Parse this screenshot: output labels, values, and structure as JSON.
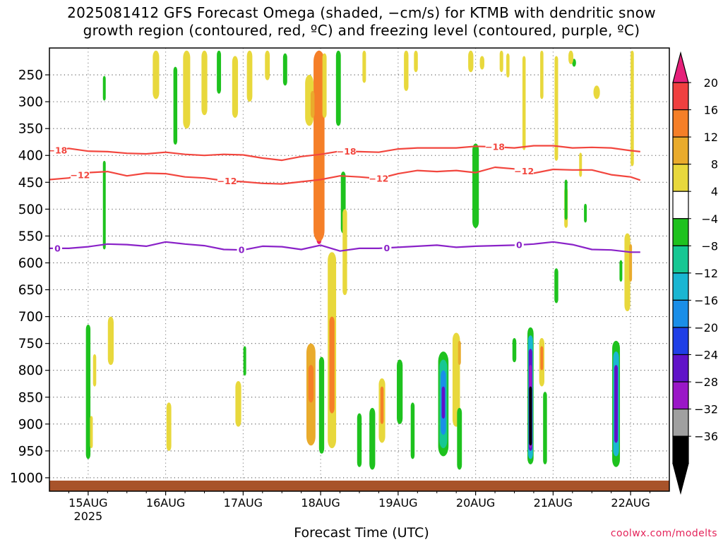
{
  "title": {
    "line1": "2025081412 GFS Forecast Omega (shaded, −cm/s) for KTMB with dendritic snow",
    "line2": "growth region (contoured, red, ºC) and freezing level (contoured, purple, ºC)"
  },
  "credit": "coolwx.com/modelts",
  "chart_data": {
    "type": "heatmap",
    "xlabel": "Forecast Time (UTC)",
    "ylabel": "",
    "x_range_hours": [
      -12,
      180
    ],
    "y_range_hpa": [
      200,
      1025
    ],
    "y_ticks": [
      250,
      300,
      350,
      400,
      450,
      500,
      550,
      600,
      650,
      700,
      750,
      800,
      850,
      900,
      950,
      1000
    ],
    "x_ticks": [
      {
        "hour": 0,
        "label": "15AUG",
        "sub": "2025"
      },
      {
        "hour": 24,
        "label": "16AUG",
        "sub": ""
      },
      {
        "hour": 48,
        "label": "17AUG",
        "sub": ""
      },
      {
        "hour": 72,
        "label": "18AUG",
        "sub": ""
      },
      {
        "hour": 96,
        "label": "19AUG",
        "sub": ""
      },
      {
        "hour": 120,
        "label": "20AUG",
        "sub": ""
      },
      {
        "hour": 144,
        "label": "21AUG",
        "sub": ""
      },
      {
        "hour": 168,
        "label": "22AUG",
        "sub": ""
      }
    ],
    "grid": true,
    "colorbar": {
      "labels": [
        "20",
        "16",
        "12",
        "8",
        "4",
        "-4",
        "-8",
        "-12",
        "-16",
        "-20",
        "-24",
        "-28",
        "-32",
        "-36"
      ],
      "colors": [
        "#ee1f5f",
        "#f04040",
        "#f57f28",
        "#e9ab2c",
        "#e8d83c",
        "#ffffff",
        "#1ec21e",
        "#16c793",
        "#1ab6d2",
        "#1a8ee8",
        "#1f3fe6",
        "#6012c8",
        "#9a17c7",
        "#a0a0a0",
        "#000000"
      ],
      "top_arrow_color": "#e6207a",
      "bottom_arrow_color": "#000000"
    },
    "omega_regions": [
      {
        "t": 71.5,
        "p0": 205,
        "p1": 565,
        "w": 1.6,
        "v": 20
      },
      {
        "t": 71.5,
        "p0": 205,
        "p1": 560,
        "w": 3.4,
        "v": 12
      },
      {
        "t": 73.2,
        "p0": 210,
        "p1": 330,
        "w": 1.3,
        "v": 4
      },
      {
        "t": 68.5,
        "p0": 250,
        "p1": 345,
        "w": 2.6,
        "v": 4
      },
      {
        "t": 69.5,
        "p0": 280,
        "p1": 330,
        "w": 1.2,
        "v": 8
      },
      {
        "t": 40.5,
        "p0": 205,
        "p1": 285,
        "w": 1.3,
        "v": -8
      },
      {
        "t": 5.0,
        "p0": 410,
        "p1": 575,
        "w": 0.6,
        "v": -8
      },
      {
        "t": 5.0,
        "p0": 252,
        "p1": 298,
        "w": 0.6,
        "v": -8
      },
      {
        "t": 27.0,
        "p0": 235,
        "p1": 380,
        "w": 1.2,
        "v": -8
      },
      {
        "t": 21.0,
        "p0": 205,
        "p1": 295,
        "w": 2.0,
        "v": 4
      },
      {
        "t": 30.5,
        "p0": 205,
        "p1": 350,
        "w": 2.2,
        "v": 4
      },
      {
        "t": 36.0,
        "p0": 205,
        "p1": 325,
        "w": 1.8,
        "v": 4
      },
      {
        "t": 45.5,
        "p0": 215,
        "p1": 330,
        "w": 1.8,
        "v": 4
      },
      {
        "t": 50.0,
        "p0": 205,
        "p1": 300,
        "w": 1.7,
        "v": 4
      },
      {
        "t": 55.5,
        "p0": 205,
        "p1": 260,
        "w": 1.5,
        "v": 4
      },
      {
        "t": 61.0,
        "p0": 210,
        "p1": 270,
        "w": 1.3,
        "v": -8
      },
      {
        "t": 77.5,
        "p0": 205,
        "p1": 345,
        "w": 1.5,
        "v": -8
      },
      {
        "t": 79.0,
        "p0": 430,
        "p1": 545,
        "w": 1.5,
        "v": -8
      },
      {
        "t": 85.5,
        "p0": 205,
        "p1": 265,
        "w": 1.1,
        "v": 4
      },
      {
        "t": 98.5,
        "p0": 205,
        "p1": 280,
        "w": 1.4,
        "v": 4
      },
      {
        "t": 101.5,
        "p0": 205,
        "p1": 245,
        "w": 1.2,
        "v": 4
      },
      {
        "t": 118.5,
        "p0": 205,
        "p1": 245,
        "w": 1.6,
        "v": 4
      },
      {
        "t": 122.0,
        "p0": 215,
        "p1": 240,
        "w": 1.4,
        "v": 4
      },
      {
        "t": 128.0,
        "p0": 205,
        "p1": 245,
        "w": 1.1,
        "v": 4
      },
      {
        "t": 130.0,
        "p0": 210,
        "p1": 255,
        "w": 1.0,
        "v": 4
      },
      {
        "t": 135.0,
        "p0": 215,
        "p1": 390,
        "w": 1.0,
        "v": 4
      },
      {
        "t": 140.5,
        "p0": 205,
        "p1": 295,
        "w": 1.0,
        "v": 4
      },
      {
        "t": 145.0,
        "p0": 215,
        "p1": 410,
        "w": 1.1,
        "v": 4
      },
      {
        "t": 150.5,
        "p0": 220,
        "p1": 235,
        "w": 1.2,
        "v": -8
      },
      {
        "t": 149.5,
        "p0": 205,
        "p1": 230,
        "w": 1.5,
        "v": 4
      },
      {
        "t": 157.5,
        "p0": 270,
        "p1": 295,
        "w": 2.0,
        "v": 4
      },
      {
        "t": 152.5,
        "p0": 395,
        "p1": 440,
        "w": 0.7,
        "v": 4
      },
      {
        "t": 148.0,
        "p0": 460,
        "p1": 535,
        "w": 1.1,
        "v": 4
      },
      {
        "t": 148.0,
        "p0": 445,
        "p1": 520,
        "w": 0.6,
        "v": -8
      },
      {
        "t": 154.0,
        "p0": 490,
        "p1": 525,
        "w": 0.8,
        "v": -8
      },
      {
        "t": 168.5,
        "p0": 205,
        "p1": 420,
        "w": 1.0,
        "v": 4
      },
      {
        "t": 167.0,
        "p0": 545,
        "p1": 690,
        "w": 1.8,
        "v": 4
      },
      {
        "t": 168.0,
        "p0": 565,
        "p1": 635,
        "w": 0.8,
        "v": 8
      },
      {
        "t": 165.0,
        "p0": 595,
        "p1": 635,
        "w": 0.7,
        "v": -8
      },
      {
        "t": 120.0,
        "p0": 378,
        "p1": 535,
        "w": 2.0,
        "v": -8
      },
      {
        "t": 145.0,
        "p0": 610,
        "p1": 675,
        "w": 1.2,
        "v": -8
      },
      {
        "t": 0.0,
        "p0": 715,
        "p1": 965,
        "w": 1.4,
        "v": -8
      },
      {
        "t": 2.0,
        "p0": 770,
        "p1": 830,
        "w": 1.0,
        "v": 4
      },
      {
        "t": 1.0,
        "p0": 885,
        "p1": 945,
        "w": 0.8,
        "v": 4
      },
      {
        "t": 7.0,
        "p0": 700,
        "p1": 790,
        "w": 1.8,
        "v": 4
      },
      {
        "t": 25.0,
        "p0": 860,
        "p1": 950,
        "w": 1.5,
        "v": 4
      },
      {
        "t": 46.5,
        "p0": 820,
        "p1": 905,
        "w": 1.8,
        "v": 4
      },
      {
        "t": 48.5,
        "p0": 755,
        "p1": 810,
        "w": 0.6,
        "v": -8
      },
      {
        "t": 69.0,
        "p0": 750,
        "p1": 940,
        "w": 2.8,
        "v": 8
      },
      {
        "t": 69.0,
        "p0": 790,
        "p1": 860,
        "w": 1.6,
        "v": 12
      },
      {
        "t": 72.3,
        "p0": 775,
        "p1": 955,
        "w": 1.6,
        "v": -8
      },
      {
        "t": 75.5,
        "p0": 580,
        "p1": 945,
        "w": 2.6,
        "v": 4
      },
      {
        "t": 75.5,
        "p0": 700,
        "p1": 880,
        "w": 1.6,
        "v": 12
      },
      {
        "t": 79.5,
        "p0": 500,
        "p1": 660,
        "w": 1.4,
        "v": 4
      },
      {
        "t": 84.0,
        "p0": 880,
        "p1": 980,
        "w": 1.4,
        "v": -8
      },
      {
        "t": 88.0,
        "p0": 870,
        "p1": 985,
        "w": 1.8,
        "v": -8
      },
      {
        "t": 91.0,
        "p0": 815,
        "p1": 935,
        "w": 2.0,
        "v": 4
      },
      {
        "t": 91.0,
        "p0": 830,
        "p1": 900,
        "w": 1.0,
        "v": 12
      },
      {
        "t": 96.5,
        "p0": 780,
        "p1": 900,
        "w": 1.8,
        "v": -8
      },
      {
        "t": 100.5,
        "p0": 860,
        "p1": 965,
        "w": 1.2,
        "v": -8
      },
      {
        "t": 110.0,
        "p0": 765,
        "p1": 960,
        "w": 3.2,
        "v": -8
      },
      {
        "t": 110.0,
        "p0": 780,
        "p1": 945,
        "w": 2.4,
        "v": -12
      },
      {
        "t": 110.0,
        "p0": 800,
        "p1": 920,
        "w": 1.6,
        "v": -20
      },
      {
        "t": 110.0,
        "p0": 830,
        "p1": 890,
        "w": 1.0,
        "v": -28
      },
      {
        "t": 114.0,
        "p0": 730,
        "p1": 905,
        "w": 2.3,
        "v": 4
      },
      {
        "t": 115.0,
        "p0": 745,
        "p1": 790,
        "w": 0.8,
        "v": 8
      },
      {
        "t": 115.0,
        "p0": 870,
        "p1": 985,
        "w": 1.5,
        "v": -8
      },
      {
        "t": 137.0,
        "p0": 720,
        "p1": 975,
        "w": 1.9,
        "v": -8
      },
      {
        "t": 137.0,
        "p0": 735,
        "p1": 965,
        "w": 1.5,
        "v": -16
      },
      {
        "t": 137.0,
        "p0": 760,
        "p1": 950,
        "w": 1.1,
        "v": -28
      },
      {
        "t": 137.0,
        "p0": 790,
        "p1": 945,
        "w": 0.75,
        "v": -32
      },
      {
        "t": 137.0,
        "p0": 830,
        "p1": 940,
        "w": 0.55,
        "v": -36
      },
      {
        "t": 140.5,
        "p0": 740,
        "p1": 830,
        "w": 1.6,
        "v": 4
      },
      {
        "t": 140.5,
        "p0": 755,
        "p1": 800,
        "w": 0.8,
        "v": 12
      },
      {
        "t": 141.5,
        "p0": 840,
        "p1": 975,
        "w": 1.2,
        "v": -8
      },
      {
        "t": 132.0,
        "p0": 740,
        "p1": 785,
        "w": 1.2,
        "v": -8
      },
      {
        "t": 163.5,
        "p0": 745,
        "p1": 980,
        "w": 2.4,
        "v": -8
      },
      {
        "t": 163.5,
        "p0": 765,
        "p1": 960,
        "w": 1.8,
        "v": -16
      },
      {
        "t": 163.5,
        "p0": 790,
        "p1": 935,
        "w": 1.1,
        "v": -28
      }
    ],
    "dgz_contours": [
      {
        "label": "-18",
        "label_hours": [
          -9.5,
          80,
          126
        ],
        "label_inline_hours": [
          10
        ],
        "points": [
          [
            -12,
            393
          ],
          [
            -6,
            387
          ],
          [
            0,
            392
          ],
          [
            6,
            393
          ],
          [
            12,
            396
          ],
          [
            18,
            397
          ],
          [
            24,
            394
          ],
          [
            30,
            398
          ],
          [
            36,
            400
          ],
          [
            42,
            398
          ],
          [
            48,
            399
          ],
          [
            54,
            405
          ],
          [
            60,
            409
          ],
          [
            66,
            402
          ],
          [
            72,
            398
          ],
          [
            78,
            392
          ],
          [
            84,
            393
          ],
          [
            90,
            394
          ],
          [
            96,
            388
          ],
          [
            102,
            386
          ],
          [
            108,
            386
          ],
          [
            114,
            386
          ],
          [
            120,
            383
          ],
          [
            126,
            384
          ],
          [
            132,
            386
          ],
          [
            138,
            382
          ],
          [
            144,
            382
          ],
          [
            150,
            386
          ],
          [
            156,
            385
          ],
          [
            162,
            386
          ],
          [
            168,
            391
          ],
          [
            171,
            393
          ]
        ]
      },
      {
        "label": "-12",
        "label_hours": [
          -2.5,
          43,
          90,
          135
        ],
        "label_inline_hours": [],
        "points": [
          [
            -12,
            445
          ],
          [
            -6,
            442
          ],
          [
            0,
            432
          ],
          [
            6,
            430
          ],
          [
            12,
            438
          ],
          [
            18,
            433
          ],
          [
            24,
            434
          ],
          [
            30,
            440
          ],
          [
            36,
            442
          ],
          [
            42,
            447
          ],
          [
            48,
            449
          ],
          [
            54,
            452
          ],
          [
            60,
            453
          ],
          [
            66,
            449
          ],
          [
            72,
            445
          ],
          [
            78,
            438
          ],
          [
            84,
            440
          ],
          [
            90,
            443
          ],
          [
            96,
            434
          ],
          [
            102,
            428
          ],
          [
            108,
            430
          ],
          [
            114,
            428
          ],
          [
            120,
            432
          ],
          [
            126,
            422
          ],
          [
            132,
            425
          ],
          [
            138,
            433
          ],
          [
            144,
            426
          ],
          [
            150,
            427
          ],
          [
            156,
            427
          ],
          [
            162,
            436
          ],
          [
            168,
            440
          ],
          [
            171,
            446
          ]
        ]
      }
    ],
    "freezing_contours": [
      {
        "label": "0",
        "label_hours": [
          -9.5,
          47.5,
          92.5,
          133.5
        ],
        "points": [
          [
            -12,
            573
          ],
          [
            -6,
            573
          ],
          [
            0,
            570
          ],
          [
            6,
            565
          ],
          [
            12,
            566
          ],
          [
            18,
            569
          ],
          [
            24,
            561
          ],
          [
            30,
            565
          ],
          [
            36,
            568
          ],
          [
            42,
            575
          ],
          [
            48,
            576
          ],
          [
            54,
            569
          ],
          [
            60,
            570
          ],
          [
            66,
            575
          ],
          [
            72,
            567
          ],
          [
            78,
            578
          ],
          [
            84,
            573
          ],
          [
            90,
            573
          ],
          [
            96,
            571
          ],
          [
            102,
            569
          ],
          [
            108,
            567
          ],
          [
            114,
            571
          ],
          [
            120,
            569
          ],
          [
            126,
            568
          ],
          [
            132,
            567
          ],
          [
            138,
            565
          ],
          [
            144,
            561
          ],
          [
            150,
            566
          ],
          [
            156,
            575
          ],
          [
            162,
            576
          ],
          [
            168,
            580
          ],
          [
            171,
            580
          ]
        ]
      }
    ]
  }
}
